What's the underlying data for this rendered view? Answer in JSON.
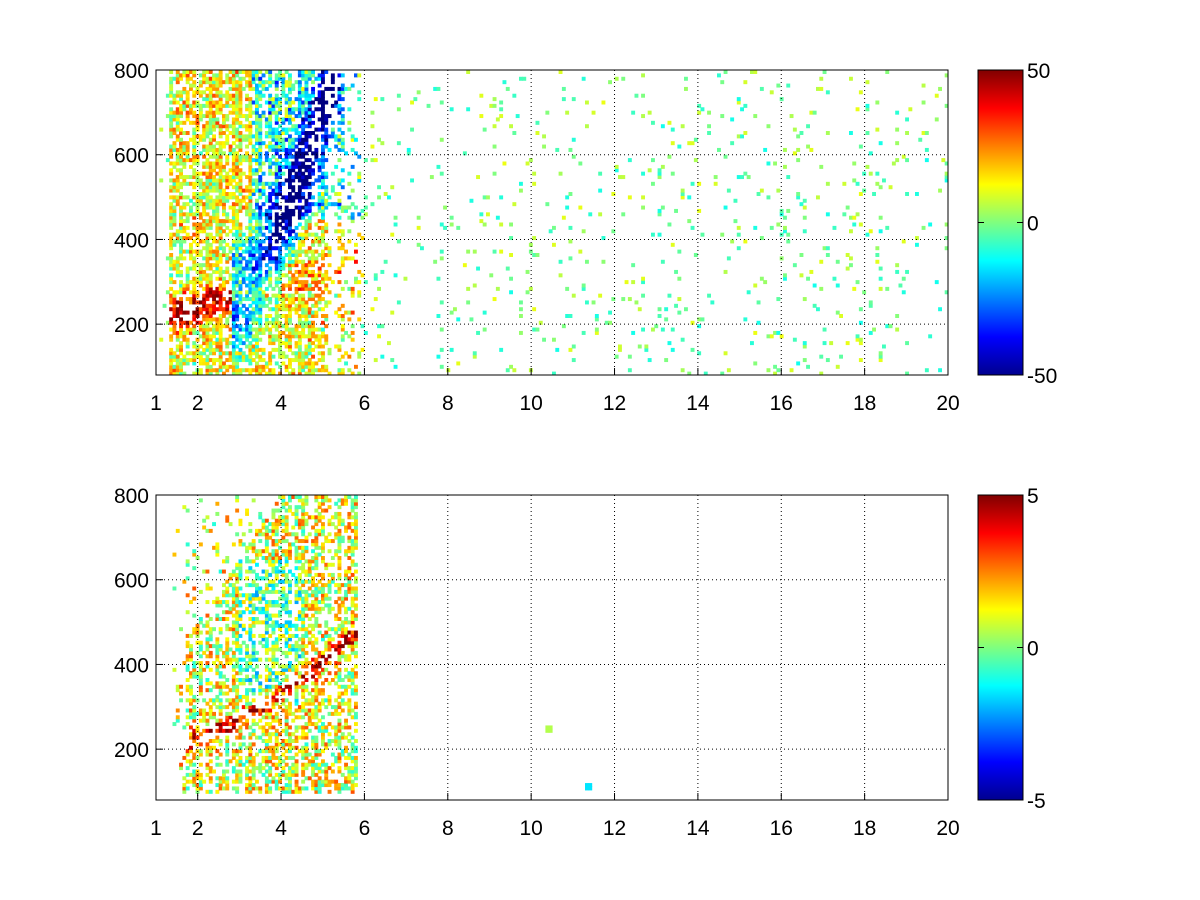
{
  "chart_data": [
    {
      "type": "heatmap",
      "title": "",
      "xlabel": "",
      "ylabel": "",
      "xlim": [
        1,
        20
      ],
      "ylim": [
        80,
        800
      ],
      "x_ticks": [
        "1",
        "2",
        "4",
        "6",
        "8",
        "10",
        "12",
        "14",
        "16",
        "18",
        "20"
      ],
      "x_tick_values": [
        1,
        2,
        4,
        6,
        8,
        10,
        12,
        14,
        16,
        18,
        20
      ],
      "y_ticks": [
        "200",
        "400",
        "600",
        "800"
      ],
      "y_tick_values": [
        200,
        400,
        600,
        800
      ],
      "grid": true,
      "colormap": "jet",
      "colorbar": {
        "limits": [
          -50,
          50
        ],
        "labels": [
          "50",
          "0",
          "-50"
        ],
        "label_values": [
          50,
          0,
          -50
        ]
      },
      "description_of_values": "Dense values for x between about 1.5 and 6: a red/orange band (about +20 to +40) near y 220-320 at x 1.5-3.5, and a strongly negative blue band (about -30 to -50) from y 250 rising to y 700 across x 3-5.5; yellow/orange scatter (about +10 to +20) over y 300-800 for x 1.5-4. Sparse green/cyan scatter (about -10 to +10) for x 6-20 across y 80-800."
    },
    {
      "type": "heatmap",
      "title": "",
      "xlabel": "",
      "ylabel": "",
      "xlim": [
        1,
        20
      ],
      "ylim": [
        80,
        800
      ],
      "x_ticks": [
        "1",
        "2",
        "4",
        "6",
        "8",
        "10",
        "12",
        "14",
        "16",
        "18",
        "20"
      ],
      "x_tick_values": [
        1,
        2,
        4,
        6,
        8,
        10,
        12,
        14,
        16,
        18,
        20
      ],
      "y_ticks": [
        "200",
        "400",
        "600",
        "800"
      ],
      "y_tick_values": [
        200,
        400,
        600,
        800
      ],
      "grid": true,
      "colormap": "jet",
      "colorbar": {
        "limits": [
          -5,
          5
        ],
        "labels": [
          "5",
          "0",
          "-5"
        ],
        "label_values": [
          5,
          0,
          -5
        ]
      },
      "description_of_values": "Values present only for x between about 1.5 and 5.8 and y 100-800: a red band (about +3 to +5) rising from y 220 at x 1.7 to y 450 at x 5.5; mixed yellow/green/cyan scatter (about -2 to +3) elsewhere in that region; two isolated points near x 10.4, y 250 and x 11.4, y 115."
    }
  ]
}
